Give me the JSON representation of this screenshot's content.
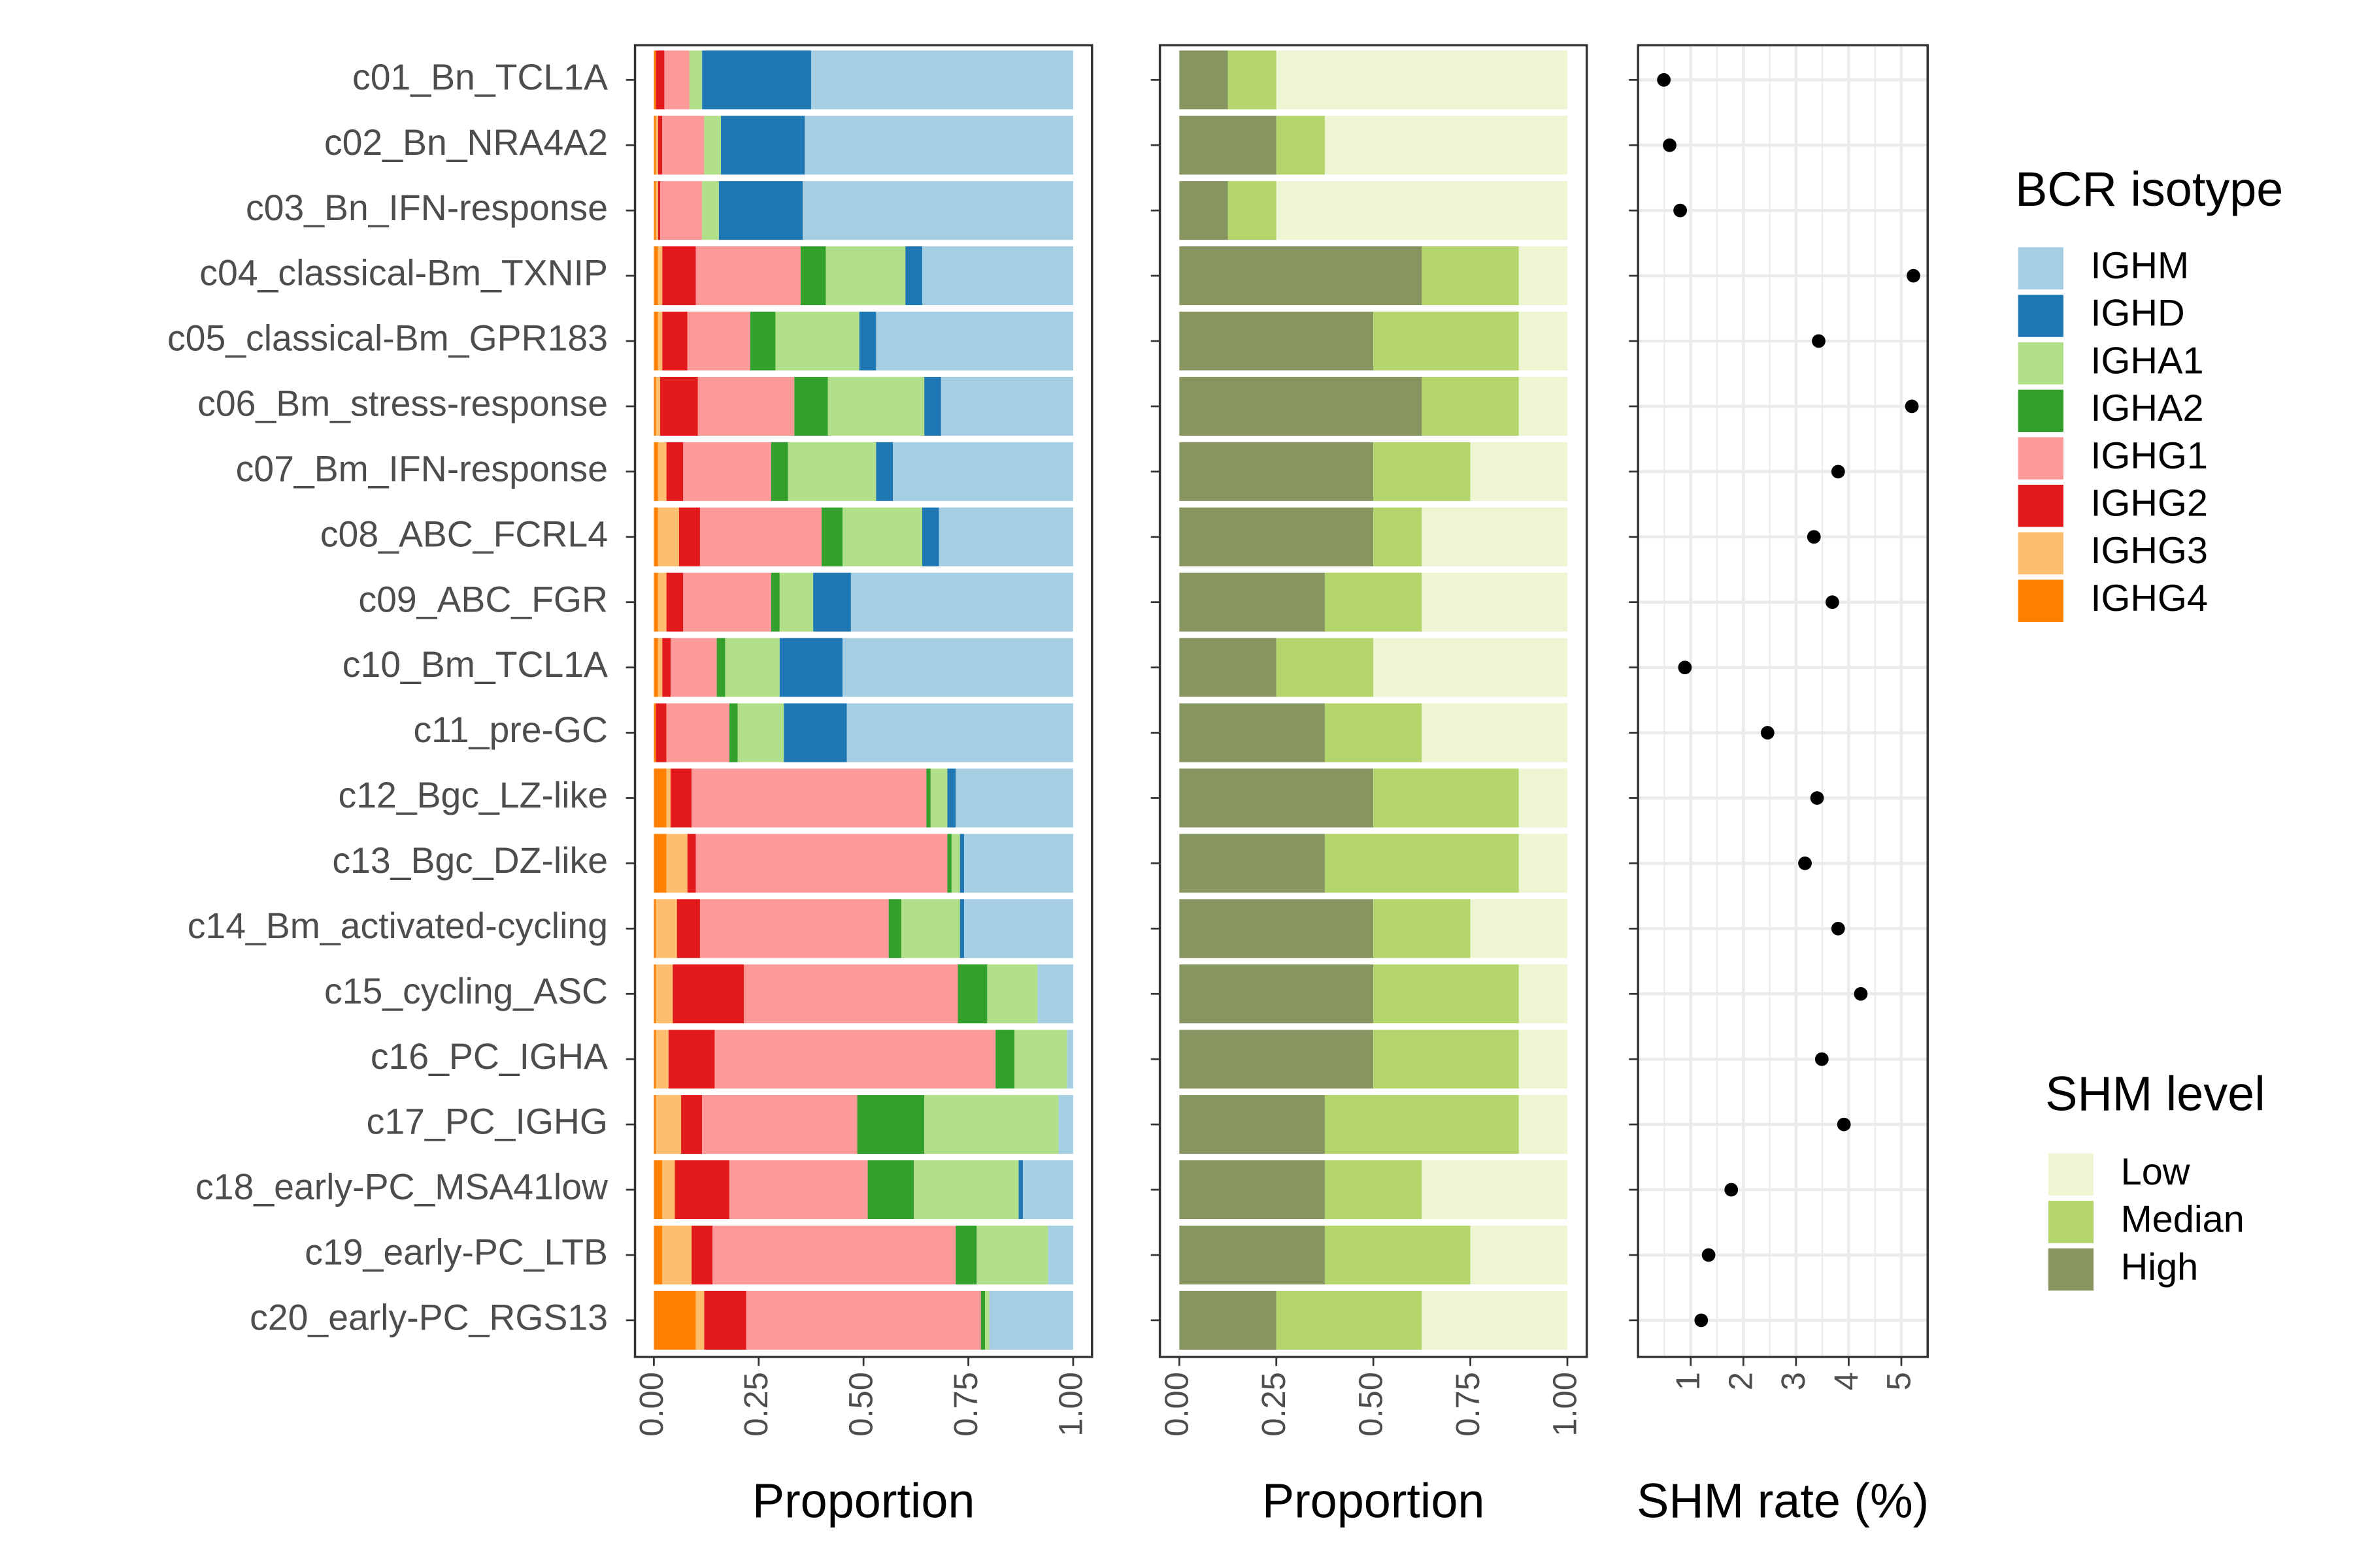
{
  "chart_data": [
    {
      "type": "bar",
      "orientation": "horizontal",
      "stacked": true,
      "xlabel": "Proportion",
      "legend_title": "BCR isotype",
      "categories": [
        "c01_Bn_TCL1A",
        "c02_Bn_NRA4A2",
        "c03_Bn_IFN-response",
        "c04_classical-Bm_TXNIP",
        "c05_classical-Bm_GPR183",
        "c06_Bm_stress-response",
        "c07_Bm_IFN-response",
        "c08_ABC_FCRL4",
        "c09_ABC_FGR",
        "c10_Bm_TCL1A",
        "c11_pre-GC",
        "c12_Bgc_LZ-like",
        "c13_Bgc_DZ-like",
        "c14_Bm_activated-cycling",
        "c15_cycling_ASC",
        "c16_PC_IGHA",
        "c17_PC_IGHG",
        "c18_early-PC_MSA41low",
        "c19_early-PC_LTB",
        "c20_early-PC_RGS13"
      ],
      "series": [
        {
          "name": "IGHM",
          "color": "#a6cee3",
          "values": [
            0.625,
            0.64,
            0.645,
            0.36,
            0.47,
            0.315,
            0.43,
            0.32,
            0.53,
            0.55,
            0.54,
            0.28,
            0.26,
            0.26,
            0.085,
            0.015,
            0.035,
            0.12,
            0.06,
            0.2
          ]
        },
        {
          "name": "IGHD",
          "color": "#1f78b4",
          "values": [
            0.26,
            0.2,
            0.2,
            0.04,
            0.04,
            0.04,
            0.04,
            0.04,
            0.09,
            0.15,
            0.15,
            0.02,
            0.01,
            0.01,
            0,
            0,
            0,
            0.01,
            0,
            0
          ]
        },
        {
          "name": "IGHA1",
          "color": "#b2df8a",
          "values": [
            0.03,
            0.04,
            0.04,
            0.19,
            0.2,
            0.23,
            0.21,
            0.19,
            0.08,
            0.13,
            0.11,
            0.04,
            0.02,
            0.14,
            0.12,
            0.125,
            0.32,
            0.25,
            0.17,
            0.01
          ]
        },
        {
          "name": "IGHA2",
          "color": "#33a02c",
          "values": [
            0,
            0,
            0,
            0.06,
            0.06,
            0.08,
            0.04,
            0.05,
            0.02,
            0.02,
            0.02,
            0.01,
            0.01,
            0.03,
            0.07,
            0.045,
            0.16,
            0.11,
            0.05,
            0.01
          ]
        },
        {
          "name": "IGHG1",
          "color": "#fb9a99",
          "values": [
            0.06,
            0.1,
            0.1,
            0.25,
            0.15,
            0.23,
            0.21,
            0.29,
            0.21,
            0.11,
            0.15,
            0.56,
            0.6,
            0.45,
            0.51,
            0.67,
            0.37,
            0.33,
            0.58,
            0.56
          ]
        },
        {
          "name": "IGHG2",
          "color": "#e31a1c",
          "values": [
            0.02,
            0.01,
            0.005,
            0.08,
            0.06,
            0.09,
            0.04,
            0.05,
            0.04,
            0.02,
            0.025,
            0.05,
            0.02,
            0.055,
            0.17,
            0.11,
            0.05,
            0.13,
            0.05,
            0.1
          ]
        },
        {
          "name": "IGHG3",
          "color": "#fdbf6f",
          "values": [
            0,
            0.005,
            0.005,
            0.01,
            0.01,
            0.01,
            0.02,
            0.05,
            0.02,
            0.01,
            0,
            0.01,
            0.05,
            0.05,
            0.04,
            0.03,
            0.06,
            0.03,
            0.07,
            0.02
          ]
        },
        {
          "name": "IGHG4",
          "color": "#ff7f00",
          "values": [
            0.005,
            0.005,
            0.005,
            0.01,
            0.01,
            0.005,
            0.01,
            0.01,
            0.01,
            0.01,
            0.005,
            0.03,
            0.03,
            0.005,
            0.005,
            0.005,
            0.005,
            0.02,
            0.02,
            0.1
          ]
        }
      ],
      "xlim": [
        -0.045,
        1.045
      ],
      "xticks": [
        {
          "value": 0,
          "label": "0.00"
        },
        {
          "value": 0.25,
          "label": "0.25"
        },
        {
          "value": 0.5,
          "label": "0.50"
        },
        {
          "value": 0.75,
          "label": "0.75"
        },
        {
          "value": 1,
          "label": "1.00"
        }
      ],
      "grid": false
    },
    {
      "type": "bar",
      "orientation": "horizontal",
      "stacked": true,
      "xlabel": "Proportion",
      "legend_title": "SHM level",
      "series": [
        {
          "name": "Low",
          "color": "#eef5d3",
          "values": [
            0.75,
            0.625,
            0.75,
            0.125,
            0.125,
            0.125,
            0.25,
            0.375,
            0.375,
            0.5,
            0.375,
            0.125,
            0.125,
            0.25,
            0.125,
            0.125,
            0.125,
            0.375,
            0.25,
            0.375
          ]
        },
        {
          "name": "Median",
          "color": "#b3d56b",
          "values": [
            0.125,
            0.125,
            0.125,
            0.25,
            0.375,
            0.25,
            0.25,
            0.125,
            0.25,
            0.25,
            0.25,
            0.375,
            0.5,
            0.25,
            0.375,
            0.375,
            0.5,
            0.25,
            0.375,
            0.375
          ]
        },
        {
          "name": "High",
          "color": "#879661",
          "values": [
            0.125,
            0.25,
            0.125,
            0.625,
            0.5,
            0.625,
            0.5,
            0.5,
            0.375,
            0.25,
            0.375,
            0.5,
            0.375,
            0.5,
            0.5,
            0.5,
            0.375,
            0.375,
            0.375,
            0.25
          ]
        }
      ],
      "xlim": [
        -0.05,
        1.05
      ],
      "xticks": [
        {
          "value": 0,
          "label": "0.00"
        },
        {
          "value": 0.25,
          "label": "0.25"
        },
        {
          "value": 0.5,
          "label": "0.50"
        },
        {
          "value": 0.75,
          "label": "0.75"
        },
        {
          "value": 1,
          "label": "1.00"
        }
      ],
      "grid": false
    },
    {
      "type": "dot",
      "xlabel": "SHM rate (%)",
      "color": "#000000",
      "values": [
        0.49,
        0.6,
        0.8,
        5.23,
        3.43,
        5.2,
        3.8,
        3.34,
        3.69,
        0.89,
        2.46,
        3.4,
        3.17,
        3.8,
        4.23,
        3.49,
        3.91,
        1.77,
        1.34,
        1.2
      ],
      "xlim": [
        0,
        5.5
      ],
      "xticks": [
        1,
        2,
        3,
        4,
        5
      ],
      "grid": true
    }
  ]
}
